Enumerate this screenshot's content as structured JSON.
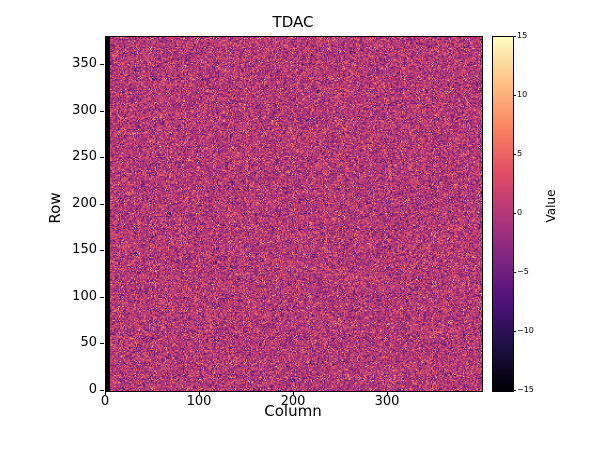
{
  "chart_data": {
    "type": "heatmap",
    "title": "TDAC",
    "xlabel": "Column",
    "ylabel": "Row",
    "colorbar_label": "Value",
    "cols": 400,
    "rows": 380,
    "x_range": [
      0,
      400
    ],
    "y_range": [
      0,
      380
    ],
    "value_range": [
      -15,
      15
    ],
    "x_ticks": [
      0,
      100,
      200,
      300
    ],
    "y_ticks": [
      0,
      50,
      100,
      150,
      200,
      250,
      300,
      350
    ],
    "colorbar_ticks": [
      15,
      10,
      5,
      0,
      -5,
      -10,
      -15
    ],
    "colormap": "magma",
    "legend_position": "right-colorbar",
    "grid": false,
    "data_description": "Dense per-pixel TDAC trim map: random noise centered near 0 (magenta midtone of magma colormap) with scattered orange/bright and dark-purple speckles across all 400x380 pixels; leftmost columns pinned at -15 forming a black vertical stripe at Column 0.",
    "noise": {
      "mean": 0,
      "std": 4,
      "seed": 1234
    },
    "left_black_columns": 4
  }
}
